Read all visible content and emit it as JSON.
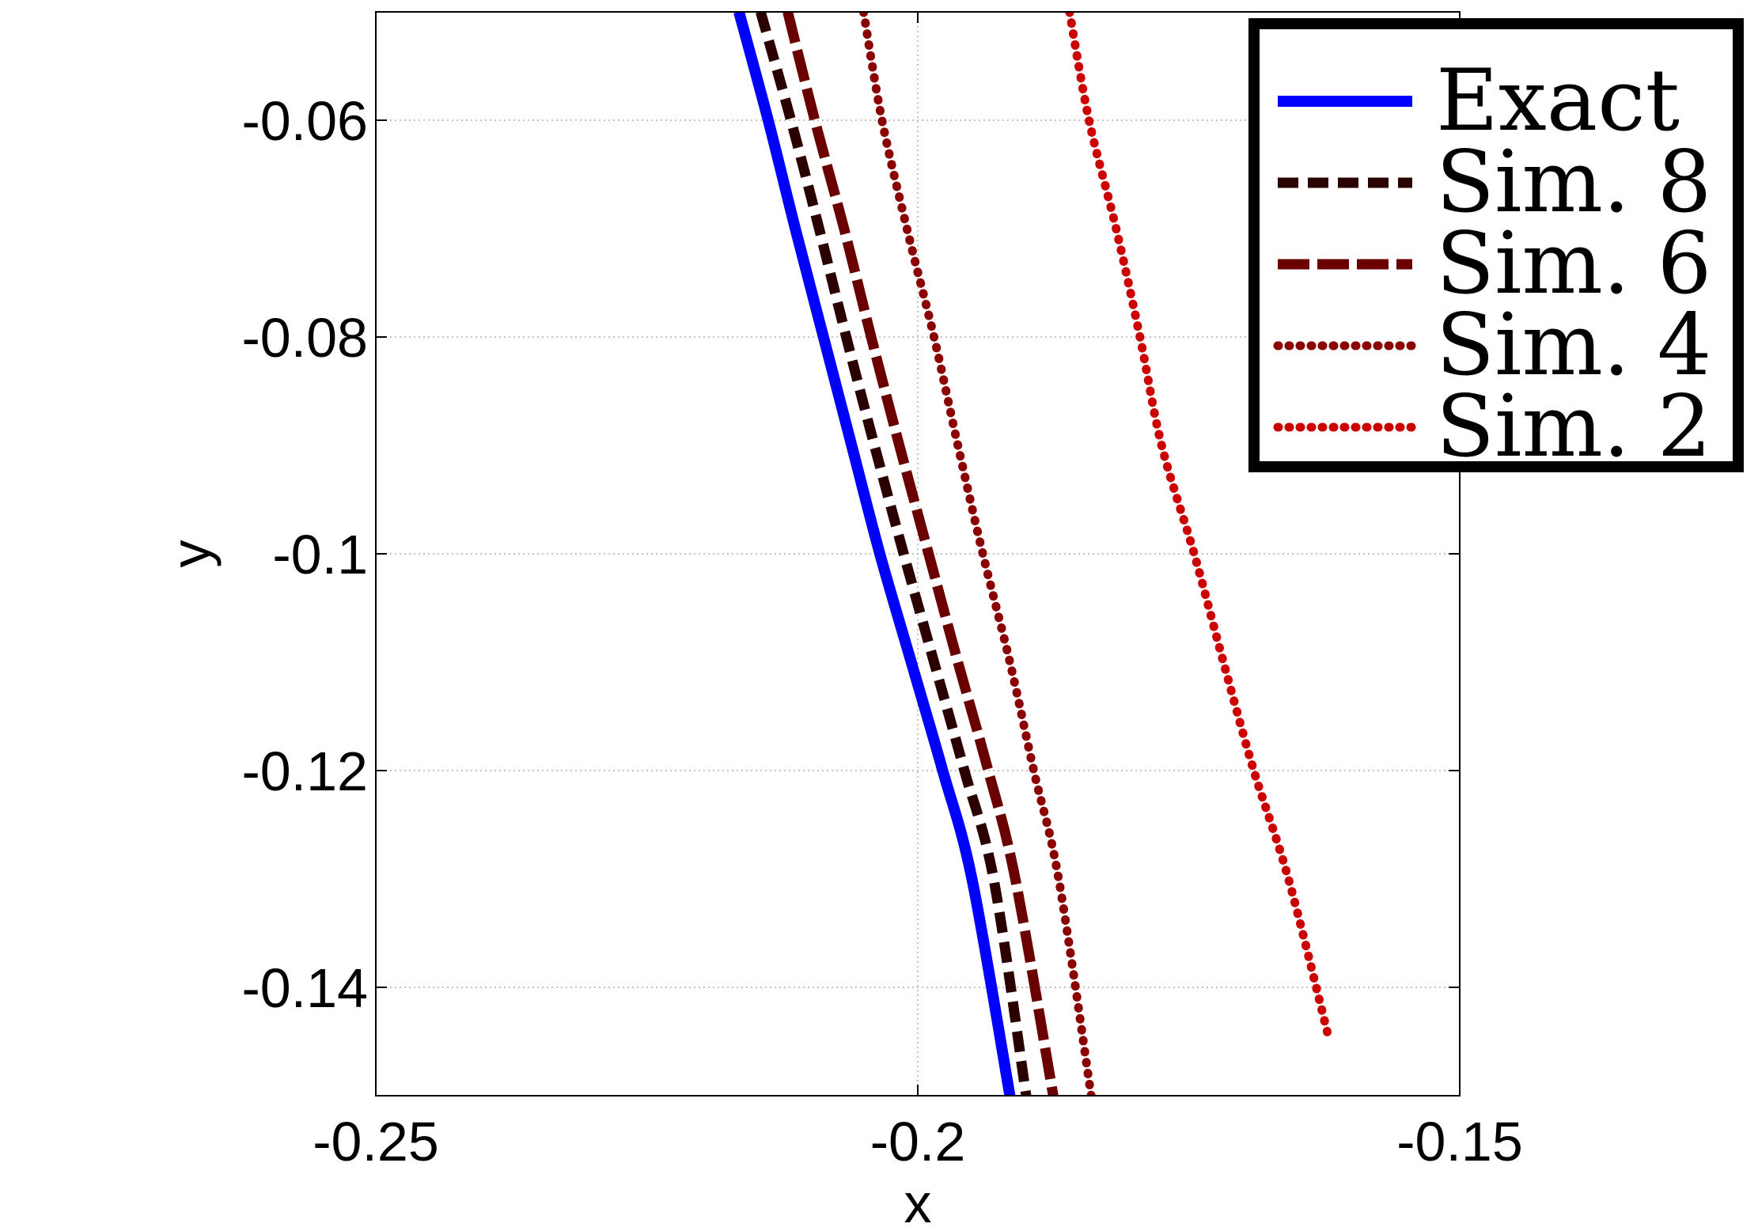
{
  "chart_data": {
    "type": "line",
    "title": "",
    "xlabel": "x",
    "ylabel": "y",
    "xlim": [
      -0.25,
      -0.15
    ],
    "ylim": [
      -0.15,
      -0.05
    ],
    "xticks": [
      -0.25,
      -0.2,
      -0.15
    ],
    "xtick_labels": [
      "-0.25",
      "-0.2",
      "-0.15"
    ],
    "yticks": [
      -0.06,
      -0.08,
      -0.1,
      -0.12,
      -0.14
    ],
    "ytick_labels": [
      "-0.06",
      "-0.08",
      "-0.1",
      "-0.12",
      "-0.14"
    ],
    "grid": true,
    "legend_position": "top-right",
    "series": [
      {
        "name": "Exact",
        "style": "solid",
        "color": "#0000ff",
        "x": [
          -0.2165,
          -0.2138,
          -0.2113,
          -0.2087,
          -0.2061,
          -0.2035,
          -0.2006,
          -0.1977,
          -0.195,
          -0.1915
        ],
        "y": [
          -0.05,
          -0.06,
          -0.07,
          -0.08,
          -0.09,
          -0.1,
          -0.11,
          -0.12,
          -0.13,
          -0.15
        ]
      },
      {
        "name": "Sim. 8",
        "style": "dashed",
        "color": "#2a0000",
        "x": [
          -0.2145,
          -0.2117,
          -0.2091,
          -0.2066,
          -0.204,
          -0.2013,
          -0.1985,
          -0.1957,
          -0.193,
          -0.19
        ],
        "y": [
          -0.05,
          -0.06,
          -0.07,
          -0.08,
          -0.09,
          -0.1,
          -0.11,
          -0.12,
          -0.13,
          -0.15
        ]
      },
      {
        "name": "Sim. 6",
        "style": "long-dashed",
        "color": "#6b0000",
        "x": [
          -0.212,
          -0.2095,
          -0.2068,
          -0.2043,
          -0.2017,
          -0.199,
          -0.1963,
          -0.1935,
          -0.191,
          -0.1875
        ],
        "y": [
          -0.05,
          -0.06,
          -0.07,
          -0.08,
          -0.09,
          -0.1,
          -0.11,
          -0.12,
          -0.13,
          -0.15
        ]
      },
      {
        "name": "Sim. 4",
        "style": "dotted",
        "color": "#8b0000",
        "x": [
          -0.205,
          -0.2033,
          -0.201,
          -0.1985,
          -0.1963,
          -0.194,
          -0.1915,
          -0.1893,
          -0.187,
          -0.184
        ],
        "y": [
          -0.05,
          -0.06,
          -0.07,
          -0.08,
          -0.09,
          -0.1,
          -0.11,
          -0.12,
          -0.13,
          -0.15
        ]
      },
      {
        "name": "Sim. 2",
        "style": "dotted",
        "color": "#cc0000",
        "x": [
          -0.186,
          -0.1842,
          -0.1817,
          -0.1795,
          -0.1775,
          -0.1745,
          -0.1718,
          -0.169,
          -0.1658,
          -0.162
        ],
        "y": [
          -0.05,
          -0.06,
          -0.07,
          -0.08,
          -0.09,
          -0.1,
          -0.11,
          -0.12,
          -0.13,
          -0.145
        ]
      }
    ]
  }
}
